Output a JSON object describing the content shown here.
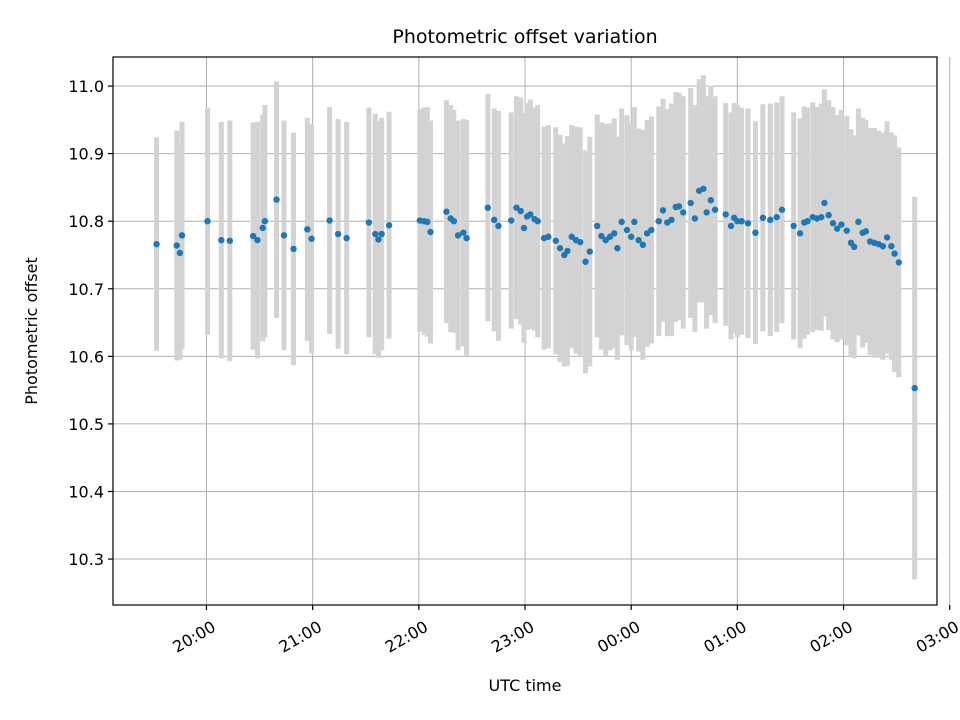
{
  "chart_data": {
    "type": "scatter",
    "title": "Photometric offset variation",
    "xlabel": "UTC time",
    "ylabel": "Photometric offset",
    "x_unit": "UTC time (hours after 19:00, continuing past midnight)",
    "xlim": [
      19.12,
      26.88
    ],
    "ylim": [
      10.232,
      11.043
    ],
    "grid": true,
    "legend": "none",
    "x_ticks": [
      {
        "value": 20,
        "label": "20:00"
      },
      {
        "value": 21,
        "label": "21:00"
      },
      {
        "value": 22,
        "label": "22:00"
      },
      {
        "value": 23,
        "label": "23:00"
      },
      {
        "value": 24,
        "label": "00:00"
      },
      {
        "value": 25,
        "label": "01:00"
      },
      {
        "value": 26,
        "label": "02:00"
      },
      {
        "value": 27,
        "label": "03:00"
      }
    ],
    "y_ticks": [
      {
        "value": 10.3,
        "label": "10.3"
      },
      {
        "value": 10.4,
        "label": "10.4"
      },
      {
        "value": 10.5,
        "label": "10.5"
      },
      {
        "value": 10.6,
        "label": "10.6"
      },
      {
        "value": 10.7,
        "label": "10.7"
      },
      {
        "value": 10.8,
        "label": "10.8"
      },
      {
        "value": 10.9,
        "label": "10.9"
      },
      {
        "value": 11.0,
        "label": "11.0"
      }
    ],
    "colors": {
      "points": "#1f77b4",
      "errorbars": "#d3d3d3",
      "grid": "#b0b0b0"
    },
    "series": [
      {
        "x": [
          19.53,
          19.72,
          19.75,
          19.77,
          20.01,
          20.14,
          20.22,
          20.44,
          20.48,
          20.53,
          20.55,
          20.66,
          20.73,
          20.82,
          20.95,
          20.99,
          21.16,
          21.24,
          21.32,
          21.53,
          21.59,
          21.62,
          21.65,
          21.72,
          22.01,
          22.05,
          22.08,
          22.11,
          22.26,
          22.3,
          22.33,
          22.37,
          22.42,
          22.45,
          22.65,
          22.71,
          22.75,
          22.87,
          22.92,
          22.96,
          22.99,
          23.02,
          23.05,
          23.09,
          23.12,
          23.18,
          23.22,
          23.29,
          23.33,
          23.37,
          23.4,
          23.44,
          23.48,
          23.52,
          23.57,
          23.61,
          23.68,
          23.72,
          23.76,
          23.8,
          23.84,
          23.87,
          23.91,
          23.96,
          24.0,
          24.03,
          24.07,
          24.11,
          24.15,
          24.19,
          24.26,
          24.3,
          24.34,
          24.38,
          24.42,
          24.45,
          24.49,
          24.56,
          24.6,
          24.64,
          24.68,
          24.71,
          24.75,
          24.79,
          24.89,
          24.94,
          24.97,
          25.0,
          25.04,
          25.1,
          25.17,
          25.24,
          25.31,
          25.37,
          25.42,
          25.53,
          25.59,
          25.63,
          25.66,
          25.71,
          25.75,
          25.79,
          25.82,
          25.86,
          25.9,
          25.94,
          25.98,
          26.03,
          26.07,
          26.1,
          26.14,
          26.18,
          26.21,
          26.25,
          26.29,
          26.33,
          26.37,
          26.41,
          26.45,
          26.48,
          26.52,
          26.67
        ],
        "y": [
          10.766,
          10.764,
          10.753,
          10.779,
          10.8,
          10.772,
          10.771,
          10.778,
          10.772,
          10.79,
          10.8,
          10.832,
          10.779,
          10.759,
          10.788,
          10.774,
          10.801,
          10.781,
          10.775,
          10.798,
          10.781,
          10.773,
          10.781,
          10.794,
          10.801,
          10.8,
          10.799,
          10.784,
          10.814,
          10.804,
          10.8,
          10.779,
          10.783,
          10.775,
          10.82,
          10.802,
          10.793,
          10.801,
          10.82,
          10.815,
          10.79,
          10.807,
          10.81,
          10.803,
          10.8,
          10.775,
          10.777,
          10.771,
          10.76,
          10.75,
          10.756,
          10.777,
          10.772,
          10.769,
          10.74,
          10.755,
          10.793,
          10.778,
          10.772,
          10.777,
          10.782,
          10.76,
          10.799,
          10.787,
          10.777,
          10.799,
          10.772,
          10.765,
          10.782,
          10.787,
          10.8,
          10.816,
          10.798,
          10.802,
          10.821,
          10.822,
          10.813,
          10.827,
          10.804,
          10.845,
          10.848,
          10.813,
          10.831,
          10.817,
          10.81,
          10.793,
          10.805,
          10.8,
          10.8,
          10.797,
          10.783,
          10.805,
          10.802,
          10.806,
          10.817,
          10.793,
          10.782,
          10.798,
          10.8,
          10.806,
          10.804,
          10.806,
          10.827,
          10.809,
          10.797,
          10.789,
          10.795,
          10.786,
          10.768,
          10.762,
          10.799,
          10.783,
          10.785,
          10.77,
          10.768,
          10.766,
          10.763,
          10.776,
          10.763,
          10.752,
          10.739,
          10.553
        ],
        "yerr": [
          0.158,
          0.17,
          0.158,
          0.168,
          0.168,
          0.175,
          0.178,
          0.168,
          0.175,
          0.168,
          0.172,
          0.175,
          0.17,
          0.172,
          0.165,
          0.17,
          0.168,
          0.17,
          0.172,
          0.17,
          0.178,
          0.175,
          0.172,
          0.168,
          0.165,
          0.168,
          0.17,
          0.165,
          0.165,
          0.168,
          0.165,
          0.17,
          0.168,
          0.175,
          0.168,
          0.165,
          0.17,
          0.16,
          0.165,
          0.168,
          0.17,
          0.168,
          0.17,
          0.165,
          0.172,
          0.165,
          0.165,
          0.168,
          0.168,
          0.165,
          0.17,
          0.165,
          0.168,
          0.17,
          0.165,
          0.17,
          0.165,
          0.168,
          0.172,
          0.168,
          0.17,
          0.165,
          0.168,
          0.17,
          0.168,
          0.17,
          0.165,
          0.17,
          0.168,
          0.168,
          0.17,
          0.165,
          0.168,
          0.172,
          0.17,
          0.168,
          0.172,
          0.17,
          0.168,
          0.165,
          0.168,
          0.172,
          0.17,
          0.168,
          0.165,
          0.168,
          0.17,
          0.172,
          0.168,
          0.17,
          0.165,
          0.168,
          0.172,
          0.17,
          0.168,
          0.168,
          0.17,
          0.172,
          0.168,
          0.17,
          0.165,
          0.168,
          0.168,
          0.17,
          0.172,
          0.168,
          0.17,
          0.17,
          0.168,
          0.165,
          0.168,
          0.17,
          0.165,
          0.168,
          0.17,
          0.168,
          0.168,
          0.172,
          0.168,
          0.175,
          0.17,
          0.283
        ]
      }
    ]
  }
}
